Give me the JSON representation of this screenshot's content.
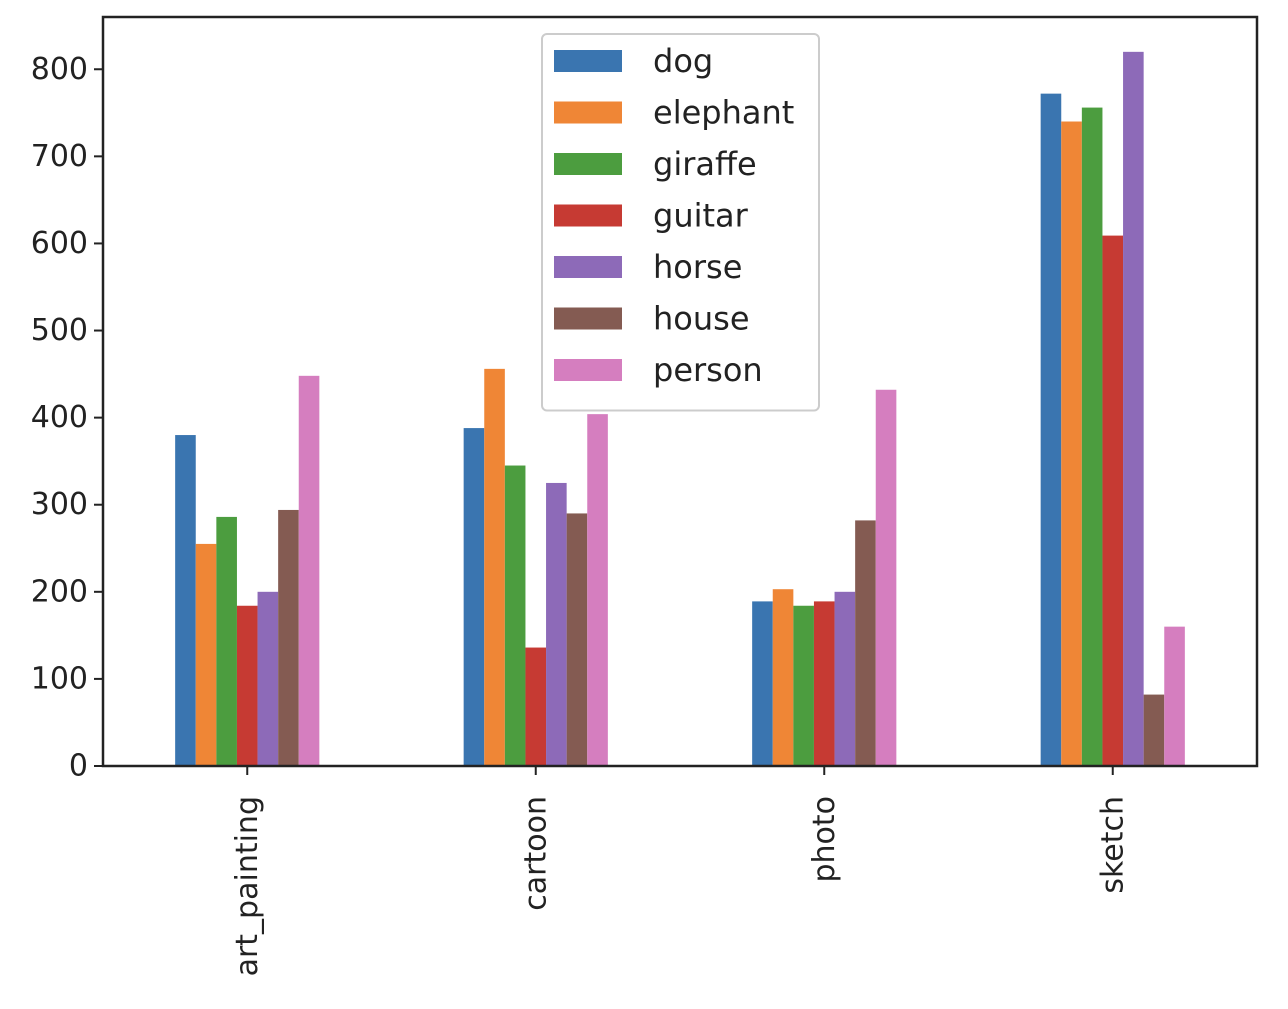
{
  "chart_data": {
    "type": "bar",
    "title": "",
    "xlabel": "",
    "ylabel": "",
    "categories": [
      "art_painting",
      "cartoon",
      "photo",
      "sketch"
    ],
    "series": [
      {
        "name": "dog",
        "color": "#3a75b0",
        "values": [
          380,
          388,
          189,
          772
        ]
      },
      {
        "name": "elephant",
        "color": "#ef8636",
        "values": [
          255,
          456,
          203,
          740
        ]
      },
      {
        "name": "giraffe",
        "color": "#4c9d3f",
        "values": [
          286,
          345,
          184,
          756
        ]
      },
      {
        "name": "guitar",
        "color": "#c63a33",
        "values": [
          184,
          136,
          189,
          609
        ]
      },
      {
        "name": "horse",
        "color": "#8d6ab8",
        "values": [
          200,
          325,
          200,
          820
        ]
      },
      {
        "name": "house",
        "color": "#845b52",
        "values": [
          294,
          290,
          282,
          82
        ]
      },
      {
        "name": "person",
        "color": "#d57ebf",
        "values": [
          448,
          404,
          432,
          160
        ]
      }
    ],
    "yticks": [
      0,
      100,
      200,
      300,
      400,
      500,
      600,
      700,
      800
    ],
    "ylim": [
      0,
      860
    ],
    "grid": false,
    "legend_position": "upper-center"
  }
}
